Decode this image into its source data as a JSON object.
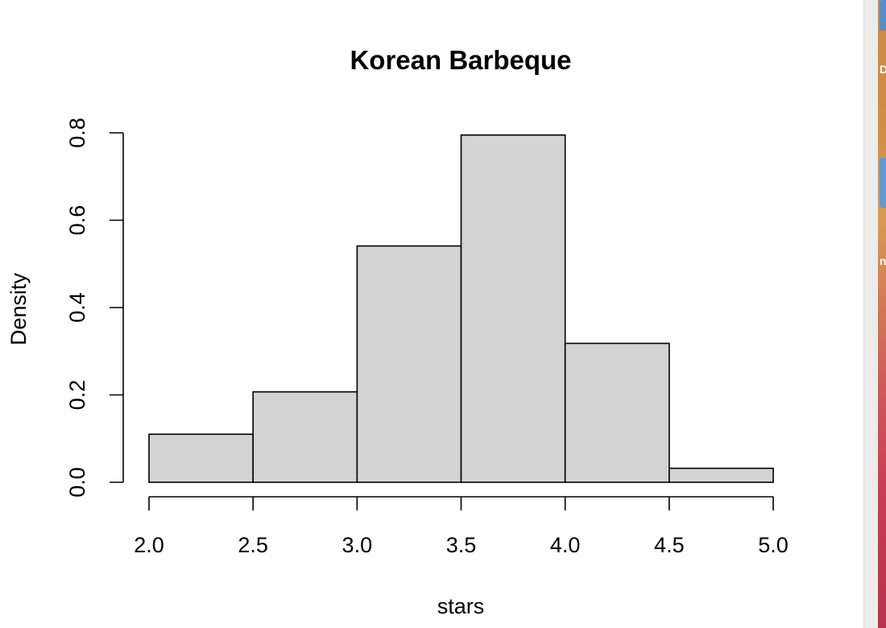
{
  "chart_data": {
    "type": "bar",
    "title": "Korean Barbeque",
    "xlabel": "stars",
    "ylabel": "Density",
    "bins": [
      {
        "x0": 2.0,
        "x1": 2.5,
        "density": 0.11
      },
      {
        "x0": 2.5,
        "x1": 3.0,
        "density": 0.207
      },
      {
        "x0": 3.0,
        "x1": 3.5,
        "density": 0.541
      },
      {
        "x0": 3.5,
        "x1": 4.0,
        "density": 0.795
      },
      {
        "x0": 4.0,
        "x1": 4.5,
        "density": 0.318
      },
      {
        "x0": 4.5,
        "x1": 5.0,
        "density": 0.032
      }
    ],
    "x_ticks": [
      "2.0",
      "2.5",
      "3.0",
      "3.5",
      "4.0",
      "4.5",
      "5.0"
    ],
    "y_ticks": [
      "0.0",
      "0.2",
      "0.4",
      "0.6",
      "0.8"
    ],
    "xlim": [
      2.0,
      5.0
    ],
    "ylim": [
      0.0,
      0.8
    ],
    "bar_fill": "#d3d3d3",
    "bar_stroke": "#000000",
    "grid": false
  },
  "desktop": {
    "label_a": "D",
    "label_b": "na"
  }
}
